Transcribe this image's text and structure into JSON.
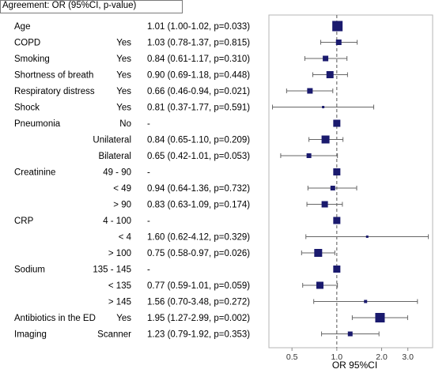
{
  "header": {
    "title": "Agreement: OR (95%CI, p-value)"
  },
  "chart_data": {
    "type": "forest",
    "title": "Agreement: OR (95%CI, p-value)",
    "xlabel": "OR 95%CI",
    "xscale": "log",
    "xlim": [
      0.35,
      4.4
    ],
    "xticks": [
      0.5,
      1.0,
      2.0,
      3.0
    ],
    "xtick_labels": [
      "0.5",
      "1.0",
      "2.0",
      "3.0"
    ],
    "reference_line": 1.0,
    "marker_color": "#1a1a6e",
    "rows": [
      {
        "variable": "Age",
        "level": "",
        "or": 1.01,
        "lo": 1.0,
        "hi": 1.02,
        "label": "1.01 (1.00-1.02, p=0.033)",
        "marker": 13
      },
      {
        "variable": "COPD",
        "level": "Yes",
        "or": 1.03,
        "lo": 0.78,
        "hi": 1.37,
        "label": "1.03 (0.78-1.37, p=0.815)",
        "marker": 7
      },
      {
        "variable": "Smoking",
        "level": "Yes",
        "or": 0.84,
        "lo": 0.61,
        "hi": 1.17,
        "label": "0.84 (0.61-1.17, p=0.310)",
        "marker": 7
      },
      {
        "variable": "Shortness of breath",
        "level": "Yes",
        "or": 0.9,
        "lo": 0.69,
        "hi": 1.18,
        "label": "0.90 (0.69-1.18, p=0.448)",
        "marker": 9
      },
      {
        "variable": "Respiratory distress",
        "level": "Yes",
        "or": 0.66,
        "lo": 0.46,
        "hi": 0.94,
        "label": "0.66 (0.46-0.94, p=0.021)",
        "marker": 7
      },
      {
        "variable": "Shock",
        "level": "Yes",
        "or": 0.81,
        "lo": 0.37,
        "hi": 1.77,
        "label": "0.81 (0.37-1.77, p=0.591)",
        "marker": 3
      },
      {
        "variable": "Pneumonia",
        "level": "No",
        "or": 1.0,
        "lo": null,
        "hi": null,
        "label": "-",
        "marker": 9
      },
      {
        "variable": "",
        "level": "Unilateral",
        "or": 0.84,
        "lo": 0.65,
        "hi": 1.1,
        "label": "0.84 (0.65-1.10, p=0.209)",
        "marker": 10
      },
      {
        "variable": "",
        "level": "Bilateral",
        "or": 0.65,
        "lo": 0.42,
        "hi": 1.01,
        "label": "0.65 (0.42-1.01, p=0.053)",
        "marker": 6
      },
      {
        "variable": "Creatinine",
        "level": "49 - 90",
        "or": 1.0,
        "lo": null,
        "hi": null,
        "label": "-",
        "marker": 9
      },
      {
        "variable": "",
        "level": "< 49",
        "or": 0.94,
        "lo": 0.64,
        "hi": 1.36,
        "label": "0.94 (0.64-1.36, p=0.732)",
        "marker": 6
      },
      {
        "variable": "",
        "level": "> 90",
        "or": 0.83,
        "lo": 0.63,
        "hi": 1.09,
        "label": "0.83 (0.63-1.09, p=0.174)",
        "marker": 8
      },
      {
        "variable": "CRP",
        "level": "4 - 100",
        "or": 1.0,
        "lo": null,
        "hi": null,
        "label": "-",
        "marker": 9
      },
      {
        "variable": "",
        "level": "< 4",
        "or": 1.6,
        "lo": 0.62,
        "hi": 4.12,
        "label": "1.60 (0.62-4.12, p=0.329)",
        "marker": 3
      },
      {
        "variable": "",
        "level": "> 100",
        "or": 0.75,
        "lo": 0.58,
        "hi": 0.97,
        "label": "0.75 (0.58-0.97, p=0.026)",
        "marker": 10
      },
      {
        "variable": "Sodium",
        "level": "135 - 145",
        "or": 1.0,
        "lo": null,
        "hi": null,
        "label": "-",
        "marker": 9
      },
      {
        "variable": "",
        "level": "< 135",
        "or": 0.77,
        "lo": 0.59,
        "hi": 1.01,
        "label": "0.77 (0.59-1.01, p=0.059)",
        "marker": 9
      },
      {
        "variable": "",
        "level": "> 145",
        "or": 1.56,
        "lo": 0.7,
        "hi": 3.48,
        "label": "1.56 (0.70-3.48, p=0.272)",
        "marker": 4
      },
      {
        "variable": "Antibiotics in the ED",
        "level": "Yes",
        "or": 1.95,
        "lo": 1.27,
        "hi": 2.99,
        "label": "1.95 (1.27-2.99, p=0.002)",
        "marker": 12
      },
      {
        "variable": "Imaging",
        "level": "Scanner",
        "or": 1.23,
        "lo": 0.79,
        "hi": 1.92,
        "label": "1.23 (0.79-1.92, p=0.353)",
        "marker": 6
      }
    ]
  }
}
